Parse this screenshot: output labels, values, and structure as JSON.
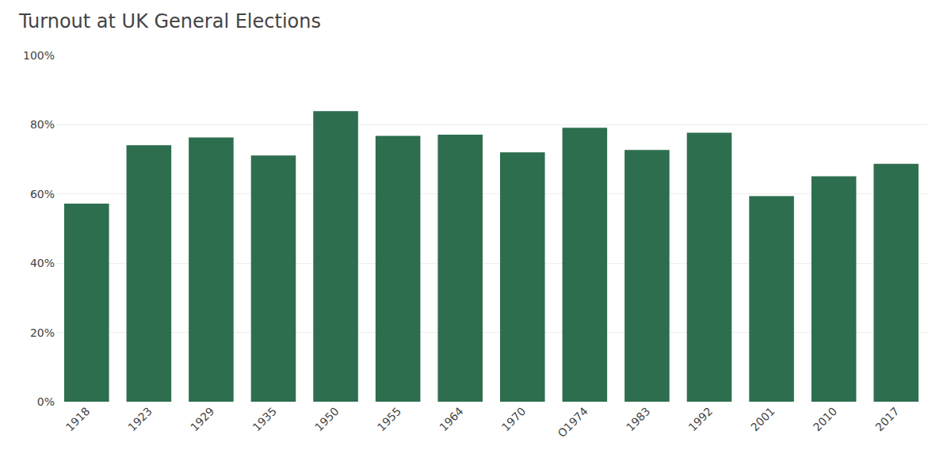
{
  "chart_data": {
    "type": "bar",
    "title": "Turnout at UK General Elections",
    "categories": [
      "1918",
      "1923",
      "1929",
      "1935",
      "1950",
      "1955",
      "1964",
      "1970",
      "O1974",
      "1983",
      "1992",
      "2001",
      "2010",
      "2017"
    ],
    "values": [
      57.2,
      74.1,
      76.3,
      71.1,
      83.9,
      76.8,
      77.1,
      72.0,
      79.1,
      72.7,
      77.7,
      59.4,
      65.1,
      68.7
    ],
    "color": "#2d6e4e",
    "ylim": [
      0,
      100
    ],
    "yticks": [
      {
        "value": 0,
        "label": "0%"
      },
      {
        "value": 20,
        "label": "20%"
      },
      {
        "value": 40,
        "label": "40%"
      },
      {
        "value": 60,
        "label": "60%"
      },
      {
        "value": 80,
        "label": "80%"
      },
      {
        "value": 100,
        "label": "100%"
      }
    ],
    "grid": true
  }
}
